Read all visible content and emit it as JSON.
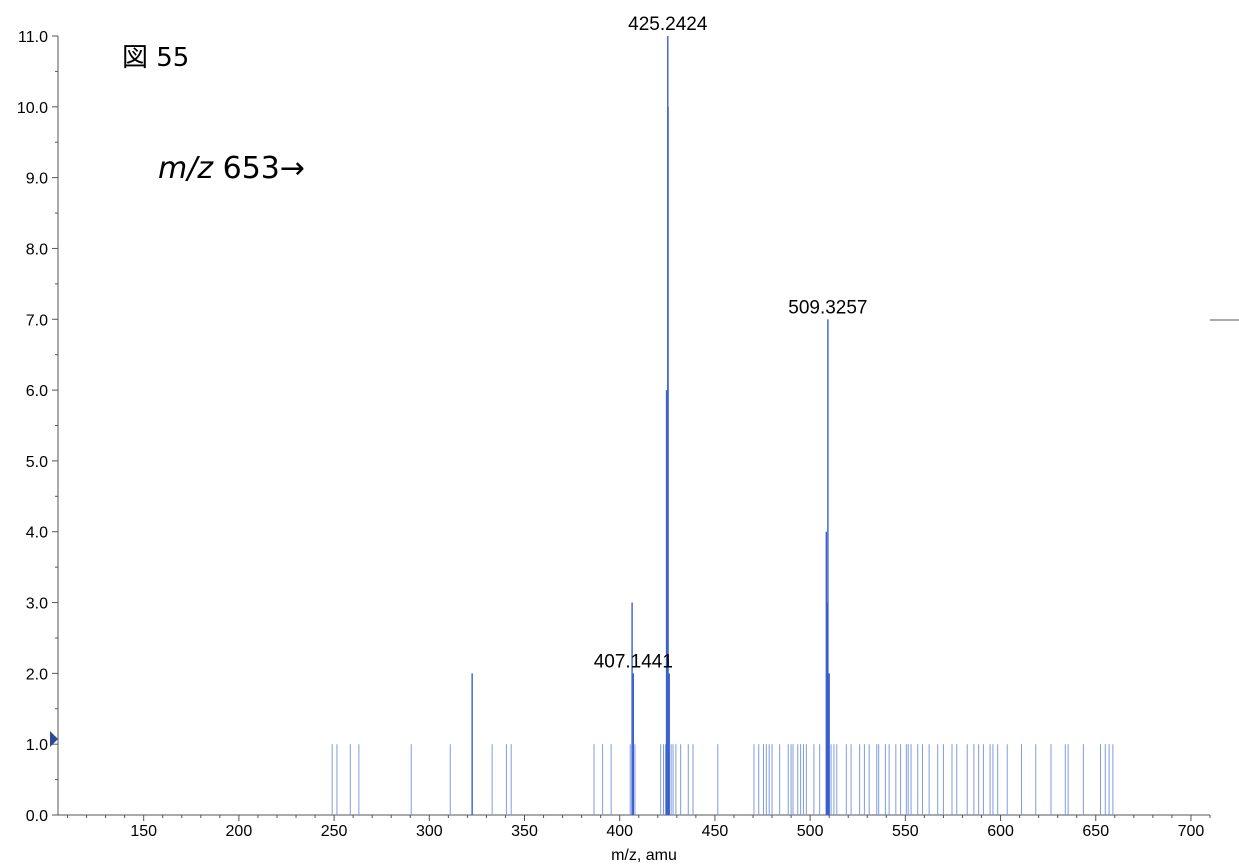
{
  "figure": {
    "label": "図 55",
    "annotation_prefix": "m/z",
    "annotation_suffix": " 653→"
  },
  "chart_data": {
    "type": "bar",
    "title": "",
    "xlabel": "m/z, amu",
    "ylabel": "",
    "xlim": [
      105,
      710
    ],
    "ylim": [
      0,
      11
    ],
    "xticks": [
      150,
      200,
      250,
      300,
      350,
      400,
      450,
      500,
      550,
      600,
      650,
      700
    ],
    "yticks": [
      0,
      1,
      2,
      3,
      4,
      5,
      6,
      7,
      8,
      9,
      10,
      11
    ],
    "grid": false,
    "colors": {
      "peak": "#3a5fcd",
      "peak_light": "#7f9be0",
      "axis": "#555555",
      "marker": "#2d4a9a"
    },
    "peaks": [
      {
        "mz": 249.0,
        "intensity": 1
      },
      {
        "mz": 251.5,
        "intensity": 1
      },
      {
        "mz": 258.5,
        "intensity": 1
      },
      {
        "mz": 263.0,
        "intensity": 1
      },
      {
        "mz": 290.5,
        "intensity": 1
      },
      {
        "mz": 311.0,
        "intensity": 1
      },
      {
        "mz": 322.5,
        "intensity": 2
      },
      {
        "mz": 333.0,
        "intensity": 1
      },
      {
        "mz": 340.5,
        "intensity": 1
      },
      {
        "mz": 343.0,
        "intensity": 1
      },
      {
        "mz": 386.5,
        "intensity": 1
      },
      {
        "mz": 391.0,
        "intensity": 1
      },
      {
        "mz": 395.5,
        "intensity": 1
      },
      {
        "mz": 405.5,
        "intensity": 1
      },
      {
        "mz": 406.5,
        "intensity": 3
      },
      {
        "mz": 407.1441,
        "intensity": 2
      },
      {
        "mz": 408.0,
        "intensity": 1
      },
      {
        "mz": 421.5,
        "intensity": 1
      },
      {
        "mz": 423.0,
        "intensity": 1
      },
      {
        "mz": 424.0,
        "intensity": 1
      },
      {
        "mz": 424.6,
        "intensity": 6
      },
      {
        "mz": 425.2424,
        "intensity": 11
      },
      {
        "mz": 425.4,
        "intensity": 10
      },
      {
        "mz": 426.0,
        "intensity": 2
      },
      {
        "mz": 427.0,
        "intensity": 1
      },
      {
        "mz": 428.0,
        "intensity": 1
      },
      {
        "mz": 429.5,
        "intensity": 1
      },
      {
        "mz": 432.0,
        "intensity": 1
      },
      {
        "mz": 436.0,
        "intensity": 1
      },
      {
        "mz": 438.5,
        "intensity": 1
      },
      {
        "mz": 451.5,
        "intensity": 1
      },
      {
        "mz": 470.5,
        "intensity": 1
      },
      {
        "mz": 473.0,
        "intensity": 1
      },
      {
        "mz": 475.5,
        "intensity": 1
      },
      {
        "mz": 477.0,
        "intensity": 1
      },
      {
        "mz": 478.5,
        "intensity": 1
      },
      {
        "mz": 480.0,
        "intensity": 1
      },
      {
        "mz": 484.0,
        "intensity": 1
      },
      {
        "mz": 488.5,
        "intensity": 1
      },
      {
        "mz": 490.0,
        "intensity": 1
      },
      {
        "mz": 491.0,
        "intensity": 1
      },
      {
        "mz": 493.5,
        "intensity": 1
      },
      {
        "mz": 495.0,
        "intensity": 1
      },
      {
        "mz": 496.5,
        "intensity": 1
      },
      {
        "mz": 498.0,
        "intensity": 1
      },
      {
        "mz": 502.0,
        "intensity": 1
      },
      {
        "mz": 505.0,
        "intensity": 1
      },
      {
        "mz": 508.5,
        "intensity": 4
      },
      {
        "mz": 509.0,
        "intensity": 3
      },
      {
        "mz": 509.3257,
        "intensity": 7
      },
      {
        "mz": 510.0,
        "intensity": 2
      },
      {
        "mz": 511.0,
        "intensity": 1
      },
      {
        "mz": 512.5,
        "intensity": 1
      },
      {
        "mz": 514.0,
        "intensity": 1
      },
      {
        "mz": 519.0,
        "intensity": 1
      },
      {
        "mz": 521.5,
        "intensity": 1
      },
      {
        "mz": 526.0,
        "intensity": 1
      },
      {
        "mz": 528.5,
        "intensity": 1
      },
      {
        "mz": 531.0,
        "intensity": 1
      },
      {
        "mz": 535.0,
        "intensity": 1
      },
      {
        "mz": 536.0,
        "intensity": 1
      },
      {
        "mz": 539.5,
        "intensity": 1
      },
      {
        "mz": 541.5,
        "intensity": 1
      },
      {
        "mz": 545.0,
        "intensity": 1
      },
      {
        "mz": 547.5,
        "intensity": 1
      },
      {
        "mz": 550.5,
        "intensity": 1
      },
      {
        "mz": 551.5,
        "intensity": 1
      },
      {
        "mz": 553.0,
        "intensity": 1
      },
      {
        "mz": 556.5,
        "intensity": 1
      },
      {
        "mz": 559.0,
        "intensity": 1
      },
      {
        "mz": 562.5,
        "intensity": 1
      },
      {
        "mz": 567.0,
        "intensity": 1
      },
      {
        "mz": 570.0,
        "intensity": 1
      },
      {
        "mz": 574.5,
        "intensity": 1
      },
      {
        "mz": 577.0,
        "intensity": 1
      },
      {
        "mz": 582.5,
        "intensity": 1
      },
      {
        "mz": 586.0,
        "intensity": 1
      },
      {
        "mz": 588.5,
        "intensity": 1
      },
      {
        "mz": 591.0,
        "intensity": 1
      },
      {
        "mz": 594.5,
        "intensity": 1
      },
      {
        "mz": 596.0,
        "intensity": 1
      },
      {
        "mz": 598.5,
        "intensity": 1
      },
      {
        "mz": 603.5,
        "intensity": 1
      },
      {
        "mz": 611.0,
        "intensity": 1
      },
      {
        "mz": 618.5,
        "intensity": 1
      },
      {
        "mz": 626.5,
        "intensity": 1
      },
      {
        "mz": 634.0,
        "intensity": 1
      },
      {
        "mz": 635.5,
        "intensity": 1
      },
      {
        "mz": 643.5,
        "intensity": 1
      },
      {
        "mz": 652.5,
        "intensity": 1
      },
      {
        "mz": 655.0,
        "intensity": 1
      },
      {
        "mz": 657.0,
        "intensity": 1
      },
      {
        "mz": 659.0,
        "intensity": 1
      }
    ],
    "labels": [
      {
        "text": "425.2424",
        "mz": 425.2424,
        "intensity": 11
      },
      {
        "text": "509.3257",
        "mz": 509.3257,
        "intensity": 7
      },
      {
        "text": "407.1441",
        "mz": 407.1441,
        "intensity": 2
      }
    ]
  }
}
